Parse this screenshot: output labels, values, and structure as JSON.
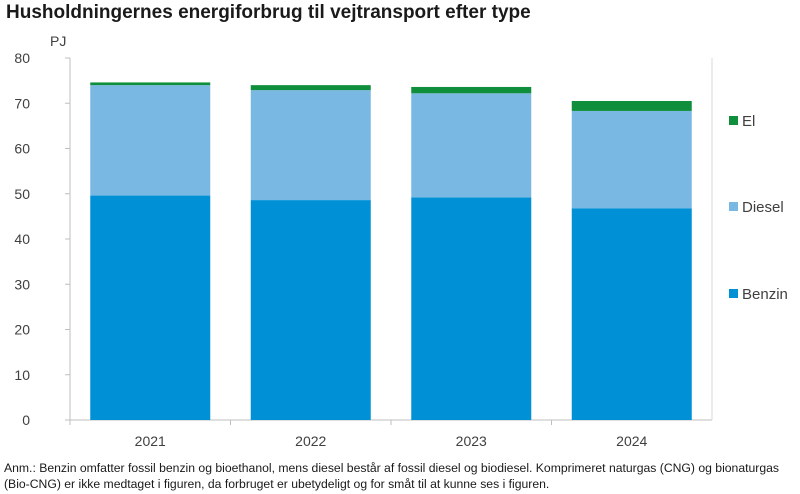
{
  "chart_data": {
    "type": "bar",
    "stacked": true,
    "title": "Husholdningernes energiforbrug til vejtransport efter type",
    "unit_label": "PJ",
    "xlabel": "",
    "ylabel": "PJ",
    "ylim": [
      0,
      80
    ],
    "yticks": [
      0,
      10,
      20,
      30,
      40,
      50,
      60,
      70,
      80
    ],
    "categories": [
      "2021",
      "2022",
      "2023",
      "2024"
    ],
    "series": [
      {
        "name": "Benzin",
        "color": "#0090d6",
        "values": [
          49.6,
          48.6,
          49.2,
          46.8
        ]
      },
      {
        "name": "Diesel",
        "color": "#7ab8e4",
        "values": [
          24.4,
          24.3,
          23.0,
          21.5
        ]
      },
      {
        "name": "El",
        "color": "#0f8f3c",
        "values": [
          0.6,
          1.1,
          1.4,
          2.2
        ]
      }
    ],
    "legend": [
      "El",
      "Diesel",
      "Benzin"
    ],
    "legend_position": "right"
  },
  "note": "Anm.: Benzin omfatter fossil benzin og bioethanol, mens diesel består af fossil diesel og biodiesel. Komprimeret naturgas (CNG) og bionaturgas (Bio-CNG) er ikke medtaget i figuren, da forbruget er ubetydeligt og for småt til at kunne ses i figuren."
}
